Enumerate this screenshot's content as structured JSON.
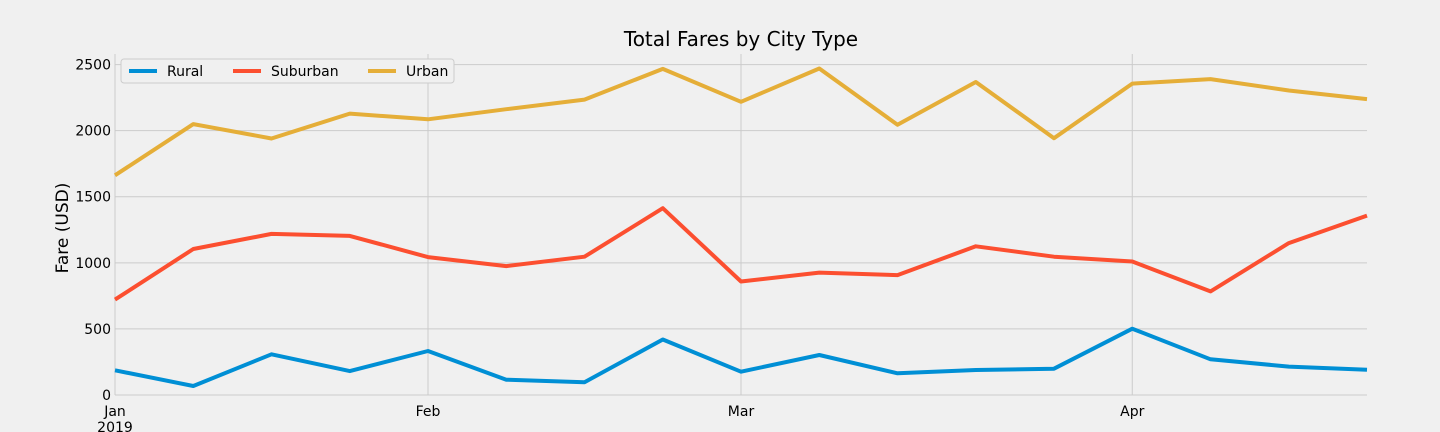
{
  "chart_data": {
    "type": "line",
    "title": "Total Fares by City Type",
    "xlabel": "",
    "ylabel": "Fare (USD)",
    "x": [
      "2019-01-06",
      "2019-01-13",
      "2019-01-20",
      "2019-01-27",
      "2019-02-03",
      "2019-02-10",
      "2019-02-17",
      "2019-02-24",
      "2019-03-03",
      "2019-03-10",
      "2019-03-17",
      "2019-03-24",
      "2019-03-31",
      "2019-04-07",
      "2019-04-14",
      "2019-04-21",
      "2019-04-28"
    ],
    "xlim": [
      "2019-01-06",
      "2019-04-28"
    ],
    "xticks": [
      {
        "date": "2019-01-06",
        "label": "Jan",
        "sublabel": "2019"
      },
      {
        "date": "2019-02-03",
        "label": "Feb",
        "sublabel": ""
      },
      {
        "date": "2019-03-03",
        "label": "Mar",
        "sublabel": ""
      },
      {
        "date": "2019-04-07",
        "label": "Apr",
        "sublabel": ""
      }
    ],
    "ylim": [
      0,
      2580
    ],
    "yticks": [
      0,
      500,
      1000,
      1500,
      2000,
      2500
    ],
    "grid": true,
    "legend_position": "top-left",
    "series": [
      {
        "name": "Rural",
        "color": "#008fd5",
        "values": [
          187,
          68,
          308,
          181,
          333,
          116,
          97,
          420,
          176,
          303,
          164,
          189,
          199,
          502,
          270,
          215,
          191
        ]
      },
      {
        "name": "Suburban",
        "color": "#fc4f30",
        "values": [
          722,
          1105,
          1219,
          1204,
          1043,
          975,
          1046,
          1413,
          859,
          926,
          907,
          1125,
          1046,
          1010,
          784,
          1149,
          1357
        ]
      },
      {
        "name": "Urban",
        "color": "#e5ae38",
        "values": [
          1662,
          2050,
          1941,
          2129,
          2086,
          2162,
          2235,
          2467,
          2218,
          2470,
          2044,
          2368,
          1943,
          2356,
          2390,
          2304,
          2239
        ]
      }
    ]
  }
}
